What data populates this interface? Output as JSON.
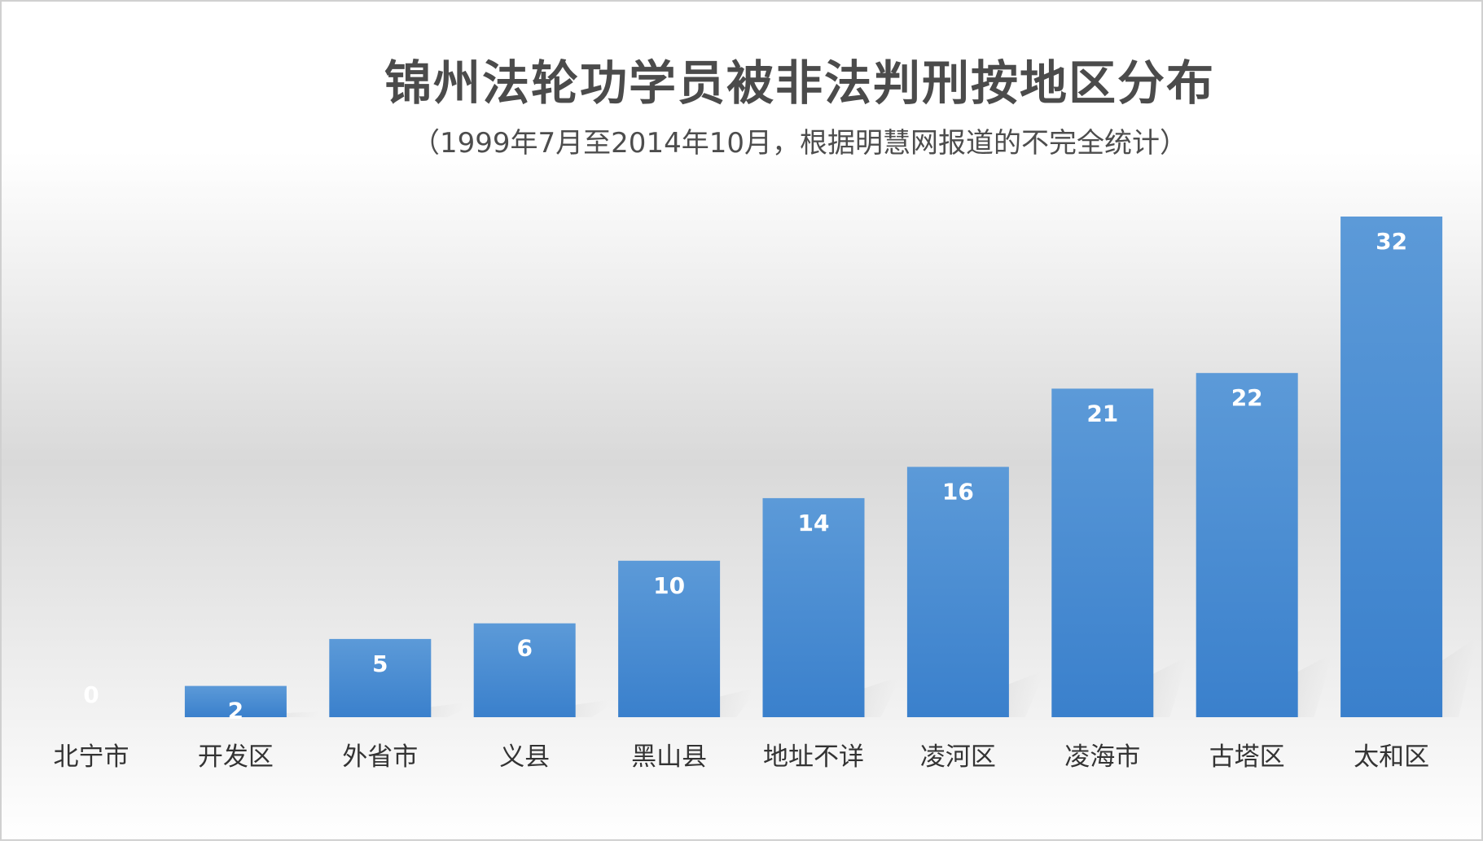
{
  "chart_data": {
    "type": "bar",
    "title": "锦州法轮功学员被非法判刑按地区分布",
    "subtitle": "（1999年7月至2014年10月，根据明慧网报道的不完全统计）",
    "categories": [
      "北宁市",
      "开发区",
      "外省市",
      "义县",
      "黑山县",
      "地址不详",
      "凌河区",
      "凌海市",
      "古塔区",
      "太和区"
    ],
    "values": [
      0,
      2,
      5,
      6,
      10,
      14,
      16,
      21,
      22,
      32
    ],
    "xlabel": "",
    "ylabel": "",
    "ylim": [
      0,
      32
    ],
    "grid": false,
    "legend": "none",
    "data_labels": "inside-end",
    "colors": {
      "bar_top": "#5c9ad8",
      "bar_bottom": "#3a80cc",
      "label": "#ffffff"
    }
  }
}
